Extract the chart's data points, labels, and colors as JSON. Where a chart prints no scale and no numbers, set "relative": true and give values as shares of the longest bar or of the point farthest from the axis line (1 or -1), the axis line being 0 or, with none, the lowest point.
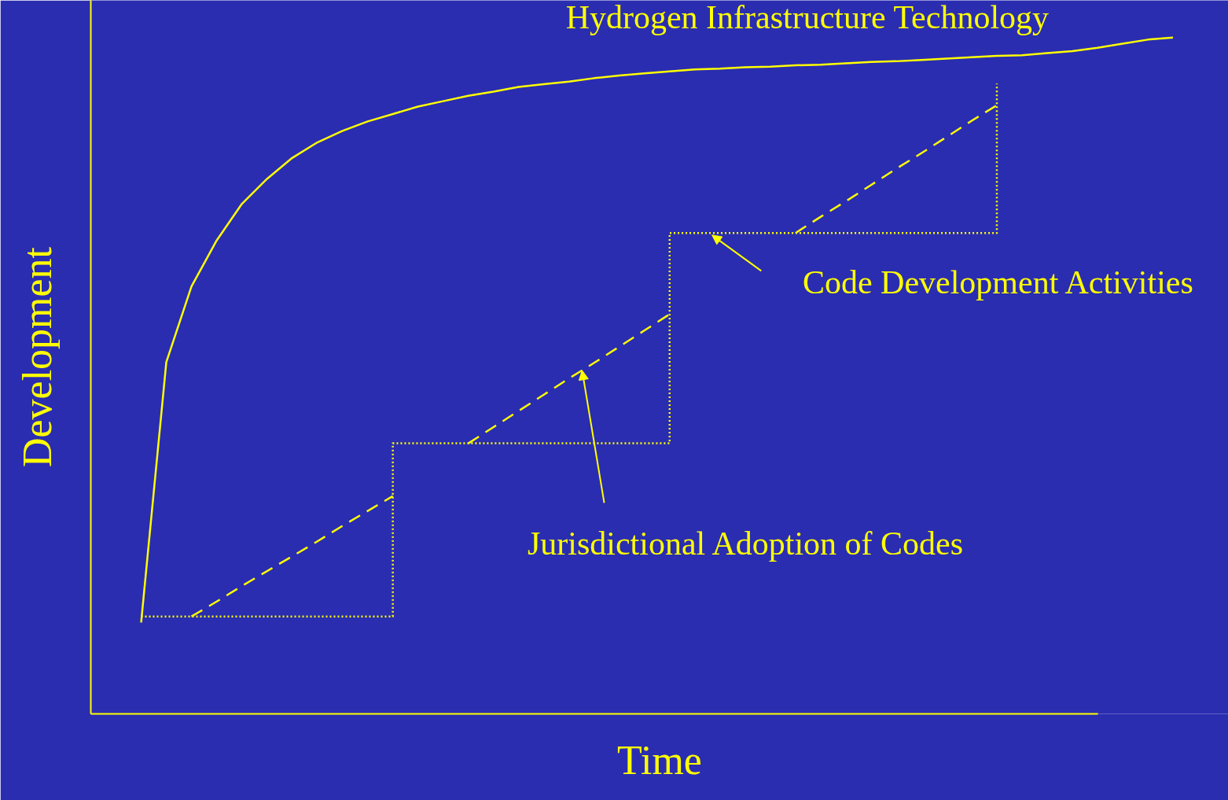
{
  "chart_data": {
    "type": "line",
    "xlabel": "Time",
    "ylabel": "Development",
    "relative": true,
    "categories": [
      null,
      null,
      null,
      null,
      null,
      null,
      null,
      null,
      null,
      null,
      null,
      null,
      null,
      null,
      null,
      null,
      null,
      null,
      null,
      null,
      null,
      null,
      null,
      null,
      null,
      null,
      null,
      null,
      null,
      null,
      null,
      null,
      null,
      null,
      null,
      null,
      null,
      null,
      null,
      null,
      null,
      null
    ],
    "series": [
      {
        "name": "Hydrogen Infrastructure Technology",
        "color": "#ffff00",
        "line_style": "solid",
        "values": [
          0.135,
          0.52,
          0.632,
          0.7,
          0.754,
          0.791,
          0.822,
          0.845,
          0.862,
          0.876,
          0.887,
          0.898,
          0.906,
          0.914,
          0.92,
          0.927,
          0.931,
          0.935,
          0.94,
          0.944,
          0.947,
          0.95,
          0.953,
          0.954,
          0.956,
          0.957,
          0.959,
          0.96,
          0.962,
          0.964,
          0.965,
          0.967,
          0.969,
          0.971,
          0.973,
          0.974,
          0.977,
          0.98,
          0.985,
          0.991,
          0.997,
          1.0
        ]
      },
      {
        "name": "Code Development Activities",
        "type": "step",
        "color": "#ffff00",
        "line_style": "dotted",
        "values": [
          0.144,
          0.144,
          0.144,
          0.144,
          0.144,
          0.144,
          0.144,
          0.144,
          0.144,
          0.144,
          0.4,
          0.4,
          0.4,
          0.4,
          0.4,
          0.4,
          0.4,
          0.4,
          0.4,
          0.4,
          0.4,
          0.711,
          0.711,
          0.711,
          0.711,
          0.711,
          0.711,
          0.711,
          0.711,
          0.711,
          0.711,
          0.711,
          0.711,
          0.711,
          0.932,
          null,
          null,
          null,
          null,
          null,
          null,
          null
        ]
      },
      {
        "name": "Jurisdictional Adoption of Codes",
        "color": "#ffff00",
        "line_style": "dashed",
        "values": [
          null,
          null,
          0.144,
          0.166,
          0.189,
          0.211,
          0.233,
          0.255,
          0.278,
          0.3,
          0.322,
          null,
          null,
          0.4,
          0.424,
          0.448,
          0.472,
          0.496,
          0.519,
          0.543,
          0.567,
          0.591,
          null,
          null,
          null,
          null,
          0.711,
          0.735,
          0.758,
          0.782,
          0.806,
          0.829,
          0.853,
          0.877,
          0.9,
          null,
          null,
          null,
          null,
          null,
          null,
          null
        ]
      }
    ]
  }
}
